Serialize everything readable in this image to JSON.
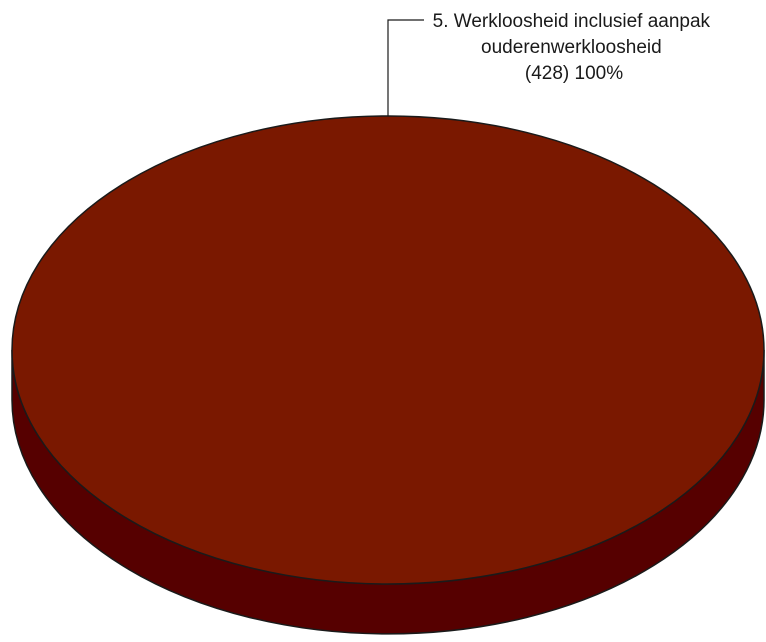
{
  "chart_data": {
    "type": "pie",
    "style": "3d",
    "slices": [
      {
        "label_lines": [
          "5. Werkloosheid inclusief aanpak",
          "ouderenwerkloosheid",
          "(428) 100%"
        ],
        "count": 428,
        "percent": 100,
        "color": "#7a1800",
        "side_color": "#560000"
      }
    ]
  }
}
